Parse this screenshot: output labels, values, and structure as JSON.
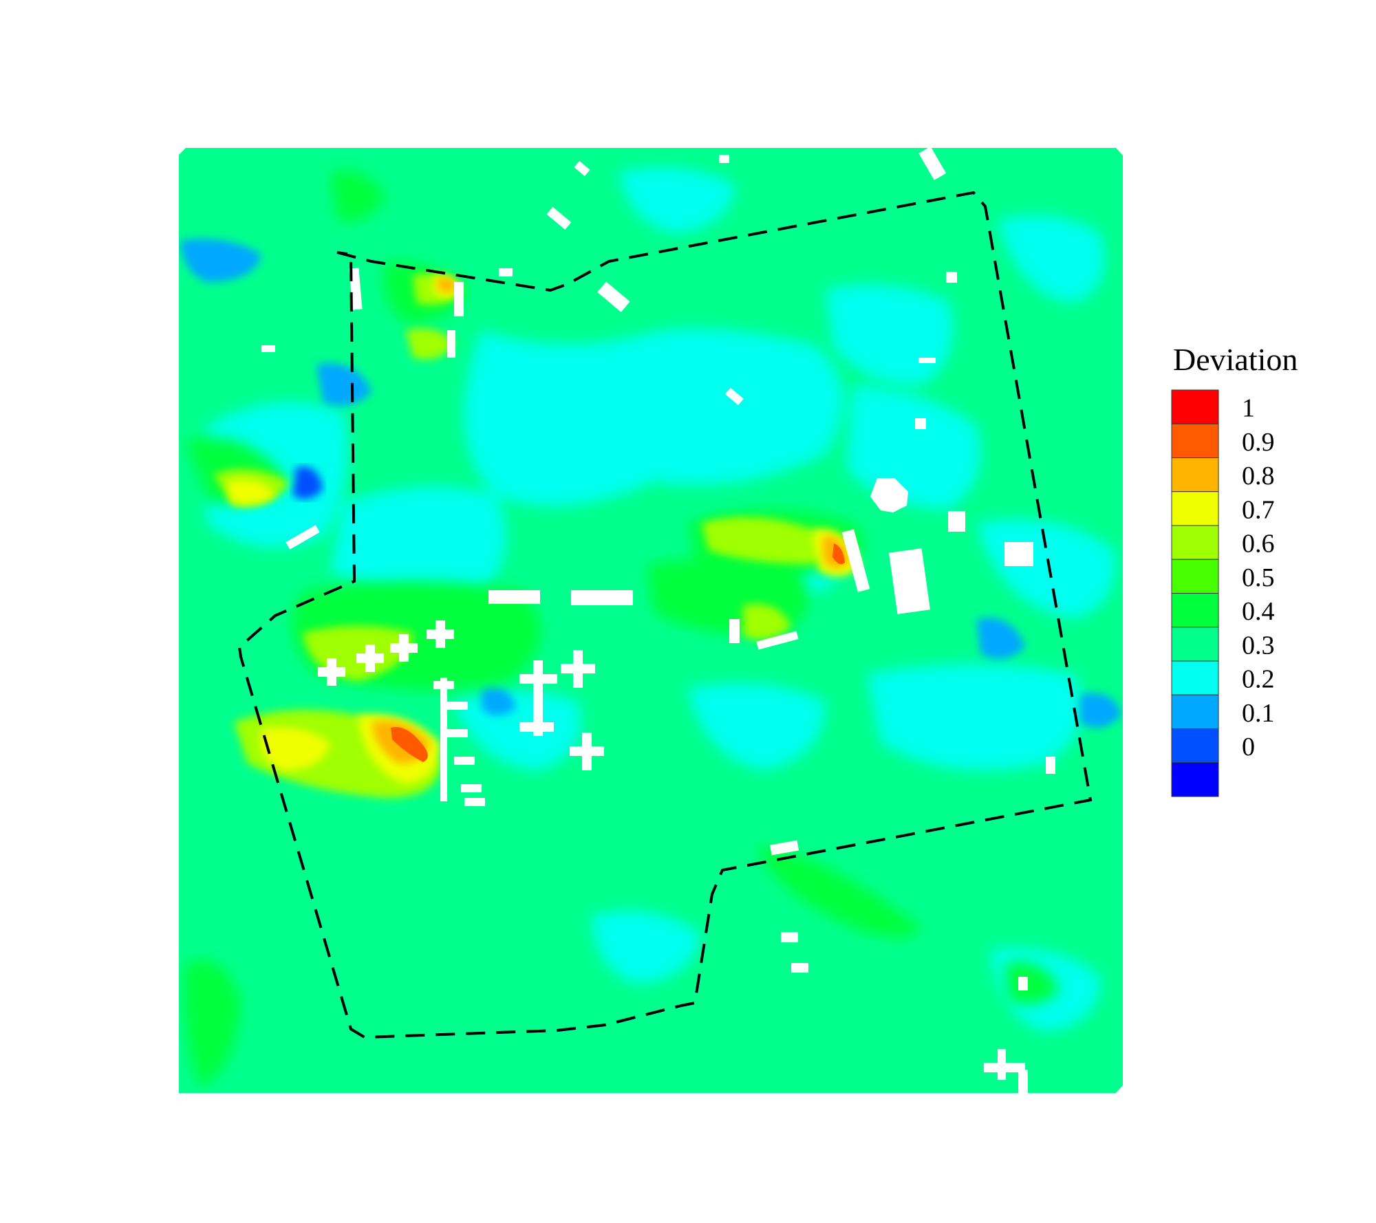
{
  "chart_data": {
    "type": "heatmap",
    "title": "",
    "xlabel": "",
    "ylabel": "",
    "legend": {
      "title": "Deviation",
      "placement": "right",
      "ticks": [
        "1",
        "0.9",
        "0.8",
        "0.7",
        "0.6",
        "0.5",
        "0.4",
        "0.3",
        "0.2",
        "0.1",
        "0"
      ],
      "levels": [
        0,
        0.1,
        0.2,
        0.3,
        0.4,
        0.5,
        0.6,
        0.7,
        0.8,
        0.9,
        1.0
      ],
      "colors": [
        "#0000ff",
        "#0050ff",
        "#00a8ff",
        "#00ffee",
        "#00ff8c",
        "#00ff3c",
        "#46ff00",
        "#a0ff00",
        "#f0ff00",
        "#ffb400",
        "#ff5a00",
        "#ff0000"
      ]
    },
    "background_level": 0.35,
    "annotations": [
      "dashed site boundary",
      "white building footprints"
    ]
  }
}
